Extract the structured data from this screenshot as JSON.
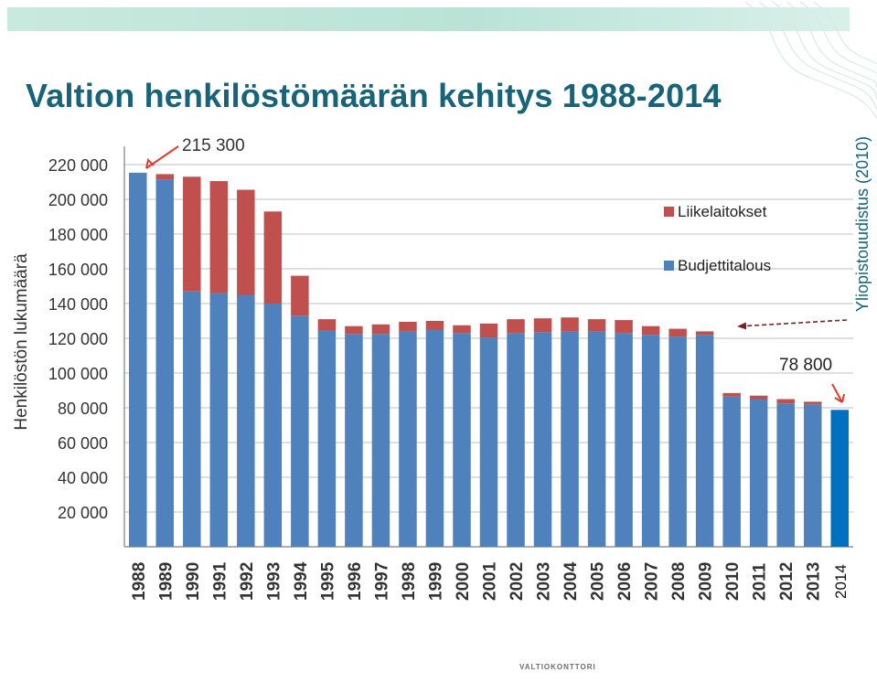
{
  "slide": {
    "title": "Valtion henkilöstömäärän kehitys 1988-2014",
    "footer_logo": "VALTIOKONTTORI"
  },
  "colors": {
    "title": "#17637a",
    "budjettitalous": "#4f81bd",
    "liikelaitokset": "#c0504d",
    "bar_2014": "#0070c0",
    "arrow": "#e03c31",
    "dashed_arrow": "#7b1f1f",
    "band": "#bfe6da"
  },
  "chart_data": {
    "type": "bar",
    "stacked": true,
    "title": "",
    "ylabel": "Henkilöstön lukumäärä",
    "xlabel": "",
    "ylim": [
      0,
      220000
    ],
    "yticks": [
      0,
      20000,
      40000,
      60000,
      80000,
      100000,
      120000,
      140000,
      160000,
      180000,
      200000,
      220000
    ],
    "ytick_labels": [
      "",
      "20 000",
      "40 000",
      "60 000",
      "80 000",
      "100 000",
      "120 000",
      "140 000",
      "160 000",
      "180 000",
      "200 000",
      "220 000"
    ],
    "grid": true,
    "legend_position": "upper-right inside plot",
    "categories": [
      "1988",
      "1989",
      "1990",
      "1991",
      "1992",
      "1993",
      "1994",
      "1995",
      "1996",
      "1997",
      "1998",
      "1999",
      "2000",
      "2001",
      "2002",
      "2003",
      "2004",
      "2005",
      "2006",
      "2007",
      "2008",
      "2009",
      "2010",
      "2011",
      "2012",
      "2013",
      "2014"
    ],
    "series": [
      {
        "name": "Budjettitalous",
        "values": [
          215300,
          211500,
          147000,
          146000,
          145000,
          140000,
          133000,
          124500,
          122500,
          122500,
          124000,
          125000,
          123000,
          120500,
          123000,
          123500,
          124000,
          124000,
          123000,
          122000,
          121000,
          122000,
          86500,
          85000,
          82500,
          82000,
          78800
        ]
      },
      {
        "name": "Liikelaitokset",
        "values": [
          0,
          3000,
          66000,
          64500,
          60500,
          53000,
          23000,
          6500,
          4500,
          5500,
          5500,
          5000,
          4500,
          8000,
          8000,
          8000,
          8000,
          7000,
          7500,
          5000,
          4500,
          2000,
          2000,
          2000,
          2500,
          1500,
          0
        ]
      }
    ],
    "annotations": [
      {
        "text": "215 300",
        "target": "1988"
      },
      {
        "text": "78 800",
        "target": "2014"
      },
      {
        "text": "Yliopistouudistus (2010)",
        "target": "2009"
      }
    ]
  }
}
